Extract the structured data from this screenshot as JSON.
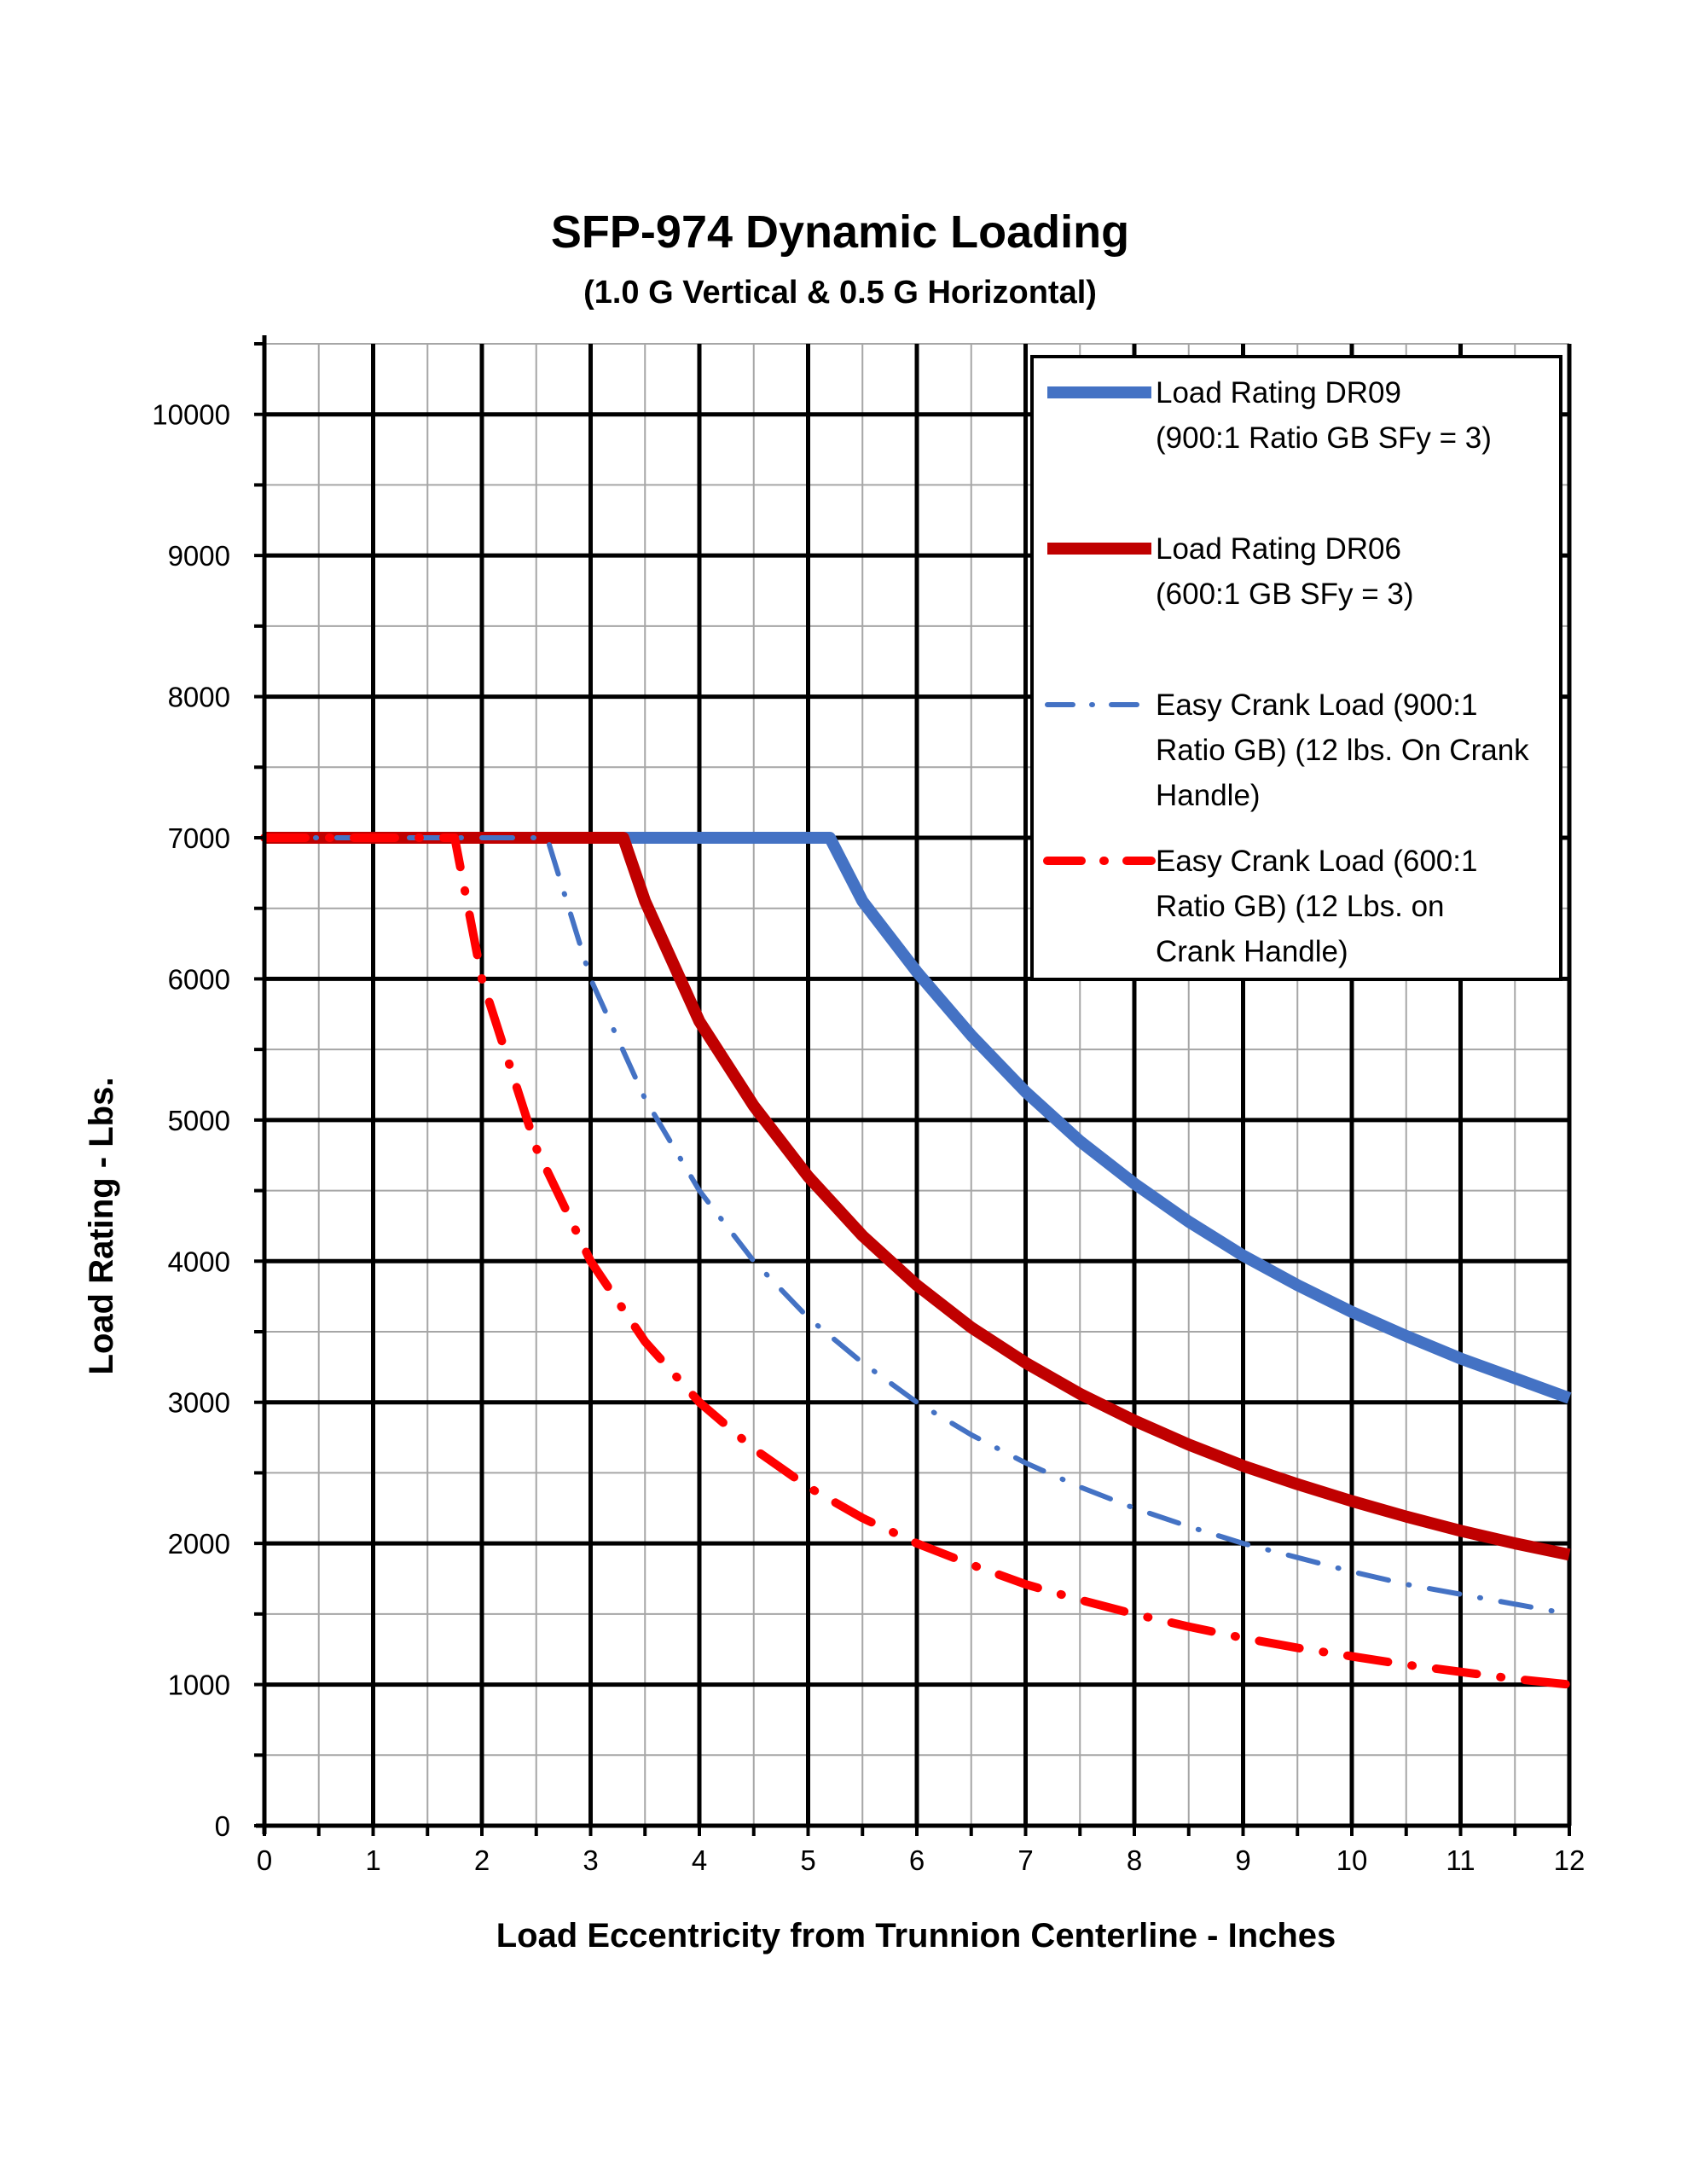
{
  "chart_data": {
    "type": "line",
    "title": "SFP-974 Dynamic Loading",
    "subtitle": "(1.0 G Vertical & 0.5 G Horizontal)",
    "xlabel": "Load Eccentricity from Trunnion Centerline - Inches",
    "ylabel": "Load Rating - Lbs.",
    "xlim": [
      0,
      12
    ],
    "ylim": [
      0,
      10500
    ],
    "x_ticks": [
      "0",
      "1",
      "2",
      "3",
      "4",
      "5",
      "6",
      "7",
      "8",
      "9",
      "10",
      "11",
      "12"
    ],
    "y_ticks": [
      "0",
      "1000",
      "2000",
      "3000",
      "4000",
      "5000",
      "6000",
      "7000",
      "8000",
      "9000",
      "10000"
    ],
    "grid": true,
    "legend_position": "top-right",
    "series": [
      {
        "name": "Load Rating DR09",
        "legend_lines": [
          "Load Rating DR09",
          "(900:1 Ratio GB SFy = 3)"
        ],
        "color": "#4472C4",
        "style": "solid",
        "x": [
          0,
          5.2,
          5.5,
          6,
          6.5,
          7,
          7.5,
          8,
          8.5,
          9,
          9.5,
          10,
          10.5,
          11,
          11.5,
          12
        ],
        "y": [
          7000,
          7000,
          6550,
          6050,
          5600,
          5200,
          4850,
          4550,
          4280,
          4040,
          3830,
          3640,
          3470,
          3310,
          3170,
          3030
        ]
      },
      {
        "name": "Load Rating DR06",
        "legend_lines": [
          "Load Rating DR06",
          "(600:1 GB SFy = 3)"
        ],
        "color": "#C00000",
        "style": "solid",
        "x": [
          0,
          3.3,
          3.5,
          4,
          4.5,
          5,
          5.5,
          6,
          6.5,
          7,
          7.5,
          8,
          8.5,
          9,
          9.5,
          10,
          10.5,
          11,
          11.5,
          12
        ],
        "y": [
          7000,
          7000,
          6550,
          5700,
          5100,
          4600,
          4180,
          3830,
          3530,
          3280,
          3060,
          2870,
          2700,
          2550,
          2420,
          2300,
          2190,
          2090,
          2000,
          1920
        ]
      },
      {
        "name": "Easy Crank Load (900:1 Ratio GB) (12 lbs. On Crank Handle)",
        "legend_lines": [
          "Easy Crank Load (900:1",
          "Ratio GB) (12 lbs. On Crank",
          "Handle)"
        ],
        "color": "#4472C4",
        "style": "dash-dot",
        "x": [
          0,
          2.6,
          3,
          3.5,
          4,
          4.5,
          5,
          5.5,
          6,
          6.5,
          7,
          7.5,
          8,
          8.5,
          9,
          9.5,
          10,
          10.5,
          11,
          11.5,
          12
        ],
        "y": [
          7000,
          7000,
          6000,
          5150,
          4500,
          4000,
          3600,
          3280,
          3000,
          2770,
          2570,
          2400,
          2250,
          2120,
          2000,
          1900,
          1800,
          1710,
          1640,
          1570,
          1500
        ]
      },
      {
        "name": "Easy Crank Load (600:1 Ratio GB) (12 Lbs. on Crank Handle)",
        "legend_lines": [
          "Easy Crank Load (600:1",
          "Ratio GB) (12 Lbs. on",
          "Crank Handle)"
        ],
        "color": "#FF0000",
        "style": "dash-dot",
        "x": [
          0,
          1.75,
          2,
          2.5,
          3,
          3.5,
          4,
          4.5,
          5,
          5.5,
          6,
          6.5,
          7,
          7.5,
          8,
          8.5,
          9,
          9.5,
          10,
          10.5,
          11,
          11.5,
          12
        ],
        "y": [
          7000,
          7000,
          6000,
          4800,
          4000,
          3430,
          3000,
          2670,
          2400,
          2180,
          2000,
          1850,
          1710,
          1600,
          1500,
          1410,
          1330,
          1260,
          1200,
          1140,
          1090,
          1040,
          1000
        ]
      }
    ]
  }
}
